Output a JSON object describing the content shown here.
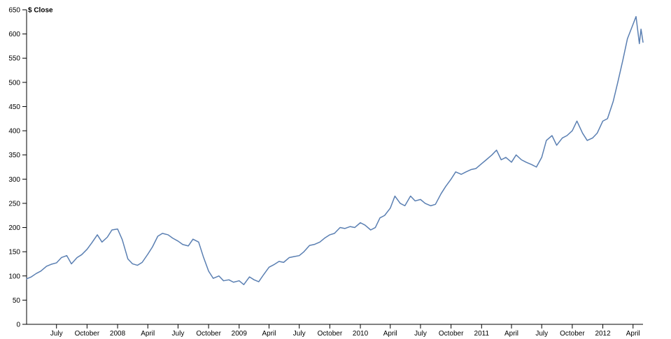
{
  "chart_data": {
    "type": "line",
    "title": "",
    "ylabel": "$ Close",
    "xlabel": "",
    "ylim": [
      0,
      650
    ],
    "y_ticks": [
      0,
      50,
      100,
      150,
      200,
      250,
      300,
      350,
      400,
      450,
      500,
      550,
      600,
      650
    ],
    "xlim": [
      "2007-04-02",
      "2012-05-01"
    ],
    "x_ticks": [
      {
        "date": "2007-07-01",
        "label": "July"
      },
      {
        "date": "2007-10-01",
        "label": "October"
      },
      {
        "date": "2008-01-01",
        "label": "2008"
      },
      {
        "date": "2008-04-01",
        "label": "April"
      },
      {
        "date": "2008-07-01",
        "label": "July"
      },
      {
        "date": "2008-10-01",
        "label": "October"
      },
      {
        "date": "2009-01-01",
        "label": "2009"
      },
      {
        "date": "2009-04-01",
        "label": "April"
      },
      {
        "date": "2009-07-01",
        "label": "July"
      },
      {
        "date": "2009-10-01",
        "label": "October"
      },
      {
        "date": "2010-01-01",
        "label": "2010"
      },
      {
        "date": "2010-04-01",
        "label": "April"
      },
      {
        "date": "2010-07-01",
        "label": "July"
      },
      {
        "date": "2010-10-01",
        "label": "October"
      },
      {
        "date": "2011-01-01",
        "label": "2011"
      },
      {
        "date": "2011-04-01",
        "label": "April"
      },
      {
        "date": "2011-07-01",
        "label": "July"
      },
      {
        "date": "2011-10-01",
        "label": "October"
      },
      {
        "date": "2012-01-01",
        "label": "2012"
      },
      {
        "date": "2012-04-01",
        "label": "April"
      }
    ],
    "grid": false,
    "series_color": "#5a7fb2",
    "series": [
      {
        "values": [
          [
            "2007-04-02",
            94
          ],
          [
            "2007-04-16",
            98
          ],
          [
            "2007-05-01",
            105
          ],
          [
            "2007-05-15",
            110
          ],
          [
            "2007-06-01",
            120
          ],
          [
            "2007-06-15",
            124
          ],
          [
            "2007-07-01",
            127
          ],
          [
            "2007-07-16",
            138
          ],
          [
            "2007-08-01",
            142
          ],
          [
            "2007-08-15",
            125
          ],
          [
            "2007-09-01",
            138
          ],
          [
            "2007-09-15",
            144
          ],
          [
            "2007-10-01",
            155
          ],
          [
            "2007-10-15",
            168
          ],
          [
            "2007-11-01",
            185
          ],
          [
            "2007-11-15",
            170
          ],
          [
            "2007-12-01",
            180
          ],
          [
            "2007-12-15",
            195
          ],
          [
            "2008-01-01",
            197
          ],
          [
            "2008-01-15",
            175
          ],
          [
            "2008-02-01",
            135
          ],
          [
            "2008-02-15",
            125
          ],
          [
            "2008-03-01",
            122
          ],
          [
            "2008-03-15",
            128
          ],
          [
            "2008-04-01",
            145
          ],
          [
            "2008-04-15",
            160
          ],
          [
            "2008-05-01",
            182
          ],
          [
            "2008-05-15",
            188
          ],
          [
            "2008-06-01",
            185
          ],
          [
            "2008-06-15",
            178
          ],
          [
            "2008-07-01",
            172
          ],
          [
            "2008-07-15",
            165
          ],
          [
            "2008-08-01",
            162
          ],
          [
            "2008-08-15",
            176
          ],
          [
            "2008-09-01",
            170
          ],
          [
            "2008-09-15",
            140
          ],
          [
            "2008-10-01",
            110
          ],
          [
            "2008-10-15",
            95
          ],
          [
            "2008-11-01",
            100
          ],
          [
            "2008-11-15",
            90
          ],
          [
            "2008-12-01",
            92
          ],
          [
            "2008-12-15",
            87
          ],
          [
            "2009-01-01",
            90
          ],
          [
            "2009-01-15",
            82
          ],
          [
            "2009-02-01",
            98
          ],
          [
            "2009-02-15",
            92
          ],
          [
            "2009-03-01",
            88
          ],
          [
            "2009-03-15",
            102
          ],
          [
            "2009-04-01",
            118
          ],
          [
            "2009-04-15",
            123
          ],
          [
            "2009-05-01",
            130
          ],
          [
            "2009-05-15",
            128
          ],
          [
            "2009-06-01",
            138
          ],
          [
            "2009-06-15",
            140
          ],
          [
            "2009-07-01",
            142
          ],
          [
            "2009-07-15",
            150
          ],
          [
            "2009-08-01",
            163
          ],
          [
            "2009-08-15",
            165
          ],
          [
            "2009-09-01",
            170
          ],
          [
            "2009-09-15",
            178
          ],
          [
            "2009-10-01",
            185
          ],
          [
            "2009-10-15",
            188
          ],
          [
            "2009-11-01",
            200
          ],
          [
            "2009-11-15",
            198
          ],
          [
            "2009-12-01",
            202
          ],
          [
            "2009-12-15",
            200
          ],
          [
            "2010-01-01",
            210
          ],
          [
            "2010-01-15",
            205
          ],
          [
            "2010-02-01",
            195
          ],
          [
            "2010-02-15",
            200
          ],
          [
            "2010-03-01",
            220
          ],
          [
            "2010-03-15",
            225
          ],
          [
            "2010-04-01",
            240
          ],
          [
            "2010-04-15",
            265
          ],
          [
            "2010-05-01",
            250
          ],
          [
            "2010-05-15",
            245
          ],
          [
            "2010-06-01",
            265
          ],
          [
            "2010-06-15",
            255
          ],
          [
            "2010-07-01",
            258
          ],
          [
            "2010-07-15",
            250
          ],
          [
            "2010-08-01",
            245
          ],
          [
            "2010-08-15",
            248
          ],
          [
            "2010-09-01",
            270
          ],
          [
            "2010-09-15",
            285
          ],
          [
            "2010-10-01",
            300
          ],
          [
            "2010-10-15",
            315
          ],
          [
            "2010-11-01",
            310
          ],
          [
            "2010-11-15",
            315
          ],
          [
            "2010-12-01",
            320
          ],
          [
            "2010-12-15",
            322
          ],
          [
            "2011-01-01",
            332
          ],
          [
            "2011-01-15",
            340
          ],
          [
            "2011-02-01",
            350
          ],
          [
            "2011-02-15",
            360
          ],
          [
            "2011-03-01",
            340
          ],
          [
            "2011-03-15",
            345
          ],
          [
            "2011-04-01",
            335
          ],
          [
            "2011-04-15",
            350
          ],
          [
            "2011-05-01",
            340
          ],
          [
            "2011-05-15",
            335
          ],
          [
            "2011-06-01",
            330
          ],
          [
            "2011-06-15",
            325
          ],
          [
            "2011-07-01",
            345
          ],
          [
            "2011-07-15",
            380
          ],
          [
            "2011-08-01",
            390
          ],
          [
            "2011-08-15",
            370
          ],
          [
            "2011-09-01",
            385
          ],
          [
            "2011-09-15",
            390
          ],
          [
            "2011-10-01",
            400
          ],
          [
            "2011-10-15",
            420
          ],
          [
            "2011-11-01",
            395
          ],
          [
            "2011-11-15",
            380
          ],
          [
            "2011-12-01",
            385
          ],
          [
            "2011-12-15",
            395
          ],
          [
            "2012-01-01",
            420
          ],
          [
            "2012-01-15",
            425
          ],
          [
            "2012-02-01",
            460
          ],
          [
            "2012-02-15",
            500
          ],
          [
            "2012-03-01",
            545
          ],
          [
            "2012-03-15",
            590
          ],
          [
            "2012-04-01",
            620
          ],
          [
            "2012-04-10",
            636
          ],
          [
            "2012-04-20",
            580
          ],
          [
            "2012-04-25",
            610
          ],
          [
            "2012-05-01",
            583
          ]
        ]
      }
    ]
  }
}
